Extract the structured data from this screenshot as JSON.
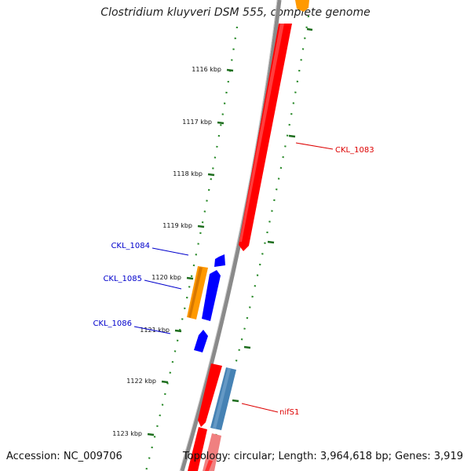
{
  "title": "Clostridium kluyveri DSM 555, complete genome",
  "footer": {
    "accession": "Accession: NC_009706",
    "summary": "Topology: circular; Length: 3,964,618 bp; Genes: 3,919"
  },
  "colors": {
    "backbone": "#8a8a8a",
    "tick_dot": "#2a8a2a",
    "tick_major": "#1e6e1e",
    "forward_gene": "#ff0000",
    "reverse_gene": "#0000ff",
    "orange_feature": "#ff9900",
    "steelblue_feature": "#4682b4",
    "label_red": "#dd0000",
    "label_blue": "#0000cc"
  },
  "ticks": [
    {
      "label": "1116 kbp"
    },
    {
      "label": "1117 kbp"
    },
    {
      "label": "1118 kbp"
    },
    {
      "label": "1119 kbp"
    },
    {
      "label": "1120 kbp"
    },
    {
      "label": "1121 kbp"
    },
    {
      "label": "1122 kbp"
    },
    {
      "label": "1123 kbp"
    }
  ],
  "gene_labels": [
    {
      "name": "CKL_1083",
      "strand": "forward"
    },
    {
      "name": "CKL_1084",
      "strand": "reverse"
    },
    {
      "name": "CKL_1085",
      "strand": "reverse"
    },
    {
      "name": "CKL_1086",
      "strand": "reverse"
    },
    {
      "name": "nifS1",
      "strand": "forward"
    }
  ]
}
